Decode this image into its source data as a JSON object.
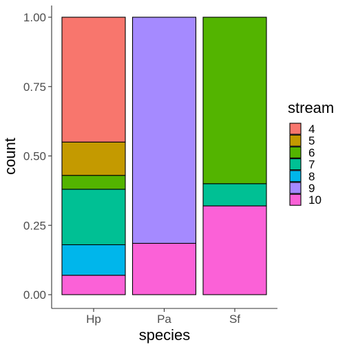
{
  "chart_data": {
    "type": "bar",
    "stacked": "fill",
    "xlabel": "species",
    "ylabel": "count",
    "categories": [
      "Hp",
      "Pa",
      "Sf"
    ],
    "ylim": [
      0,
      1
    ],
    "yticks": [
      "0.00",
      "0.25",
      "0.50",
      "0.75",
      "1.00"
    ],
    "ytick_values": [
      0,
      0.25,
      0.5,
      0.75,
      1.0
    ],
    "grid": false,
    "legend": {
      "title": "stream",
      "position": "right"
    },
    "series": [
      {
        "name": "4",
        "color": "#F8766D",
        "values": [
          0.45,
          0,
          0
        ]
      },
      {
        "name": "5",
        "color": "#C49A00",
        "values": [
          0.12,
          0,
          0
        ]
      },
      {
        "name": "6",
        "color": "#53B400",
        "values": [
          0.05,
          0,
          0.6
        ]
      },
      {
        "name": "7",
        "color": "#00C094",
        "values": [
          0.2,
          0,
          0.08
        ]
      },
      {
        "name": "8",
        "color": "#00B6EB",
        "values": [
          0.11,
          0,
          0
        ]
      },
      {
        "name": "9",
        "color": "#A58AFF",
        "values": [
          0,
          0.815,
          0
        ]
      },
      {
        "name": "10",
        "color": "#FB61D7",
        "values": [
          0.07,
          0.185,
          0.32
        ]
      }
    ]
  }
}
